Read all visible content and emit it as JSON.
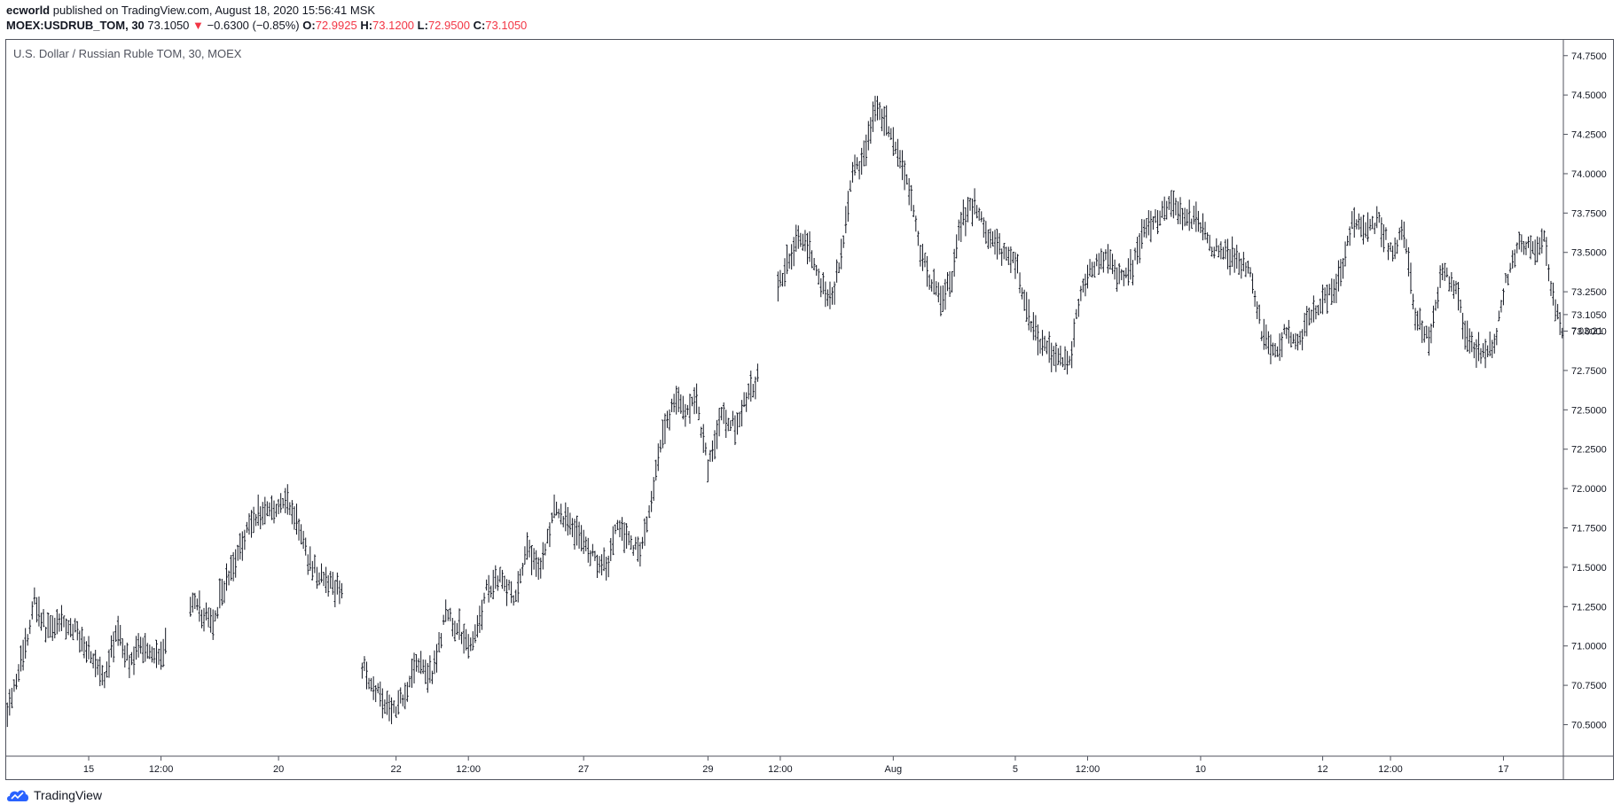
{
  "header": {
    "author": "ecworld",
    "published": "published on TradingView.com, August 18, 2020 15:56:41 MSK",
    "symbol": "MOEX:USDRUB_TOM, 30",
    "last": "73.1050",
    "change": "−0.6300 (−0.85%)",
    "o_label": "O:",
    "o_value": "72.9925",
    "h_label": "H:",
    "h_value": "73.1200",
    "l_label": "L:",
    "l_value": "72.9500",
    "c_label": "C:",
    "c_value": "73.1050"
  },
  "colors": {
    "bar": "#131722",
    "down": "#f23645",
    "axis": "#50535e",
    "brand": "#2962ff"
  },
  "footer": {
    "brand": "TradingView"
  },
  "chart_data": {
    "type": "ohlc",
    "title": "U.S. Dollar / Russian Ruble TOM, 30, MOEX",
    "y_ticks": [
      "74.7500",
      "74.5000",
      "74.2500",
      "74.0000",
      "73.7500",
      "73.5000",
      "73.2500",
      "73.0000",
      "72.7500",
      "72.5000",
      "72.2500",
      "72.0000",
      "71.7500",
      "71.5000",
      "71.2500",
      "71.0000",
      "70.7500",
      "70.5000"
    ],
    "ylim": [
      70.3,
      74.85
    ],
    "x_ticks": [
      "15",
      "12:00",
      "20",
      "22",
      "12:00",
      "27",
      "29",
      "12:00",
      "Aug",
      "5",
      "12:00",
      "10",
      "12",
      "12:00",
      "17"
    ],
    "last_price_label": "73.1050",
    "countdown_label": "03:21",
    "countdown_prefix": "7",
    "close_path": [
      {
        "x": 0,
        "y": 70.6
      },
      {
        "x": 5,
        "y": 70.85
      },
      {
        "x": 9,
        "y": 71.05
      },
      {
        "x": 12,
        "y": 71.3
      },
      {
        "x": 17,
        "y": 71.1
      },
      {
        "x": 22,
        "y": 71.15
      },
      {
        "x": 30,
        "y": 71.1
      },
      {
        "x": 37,
        "y": 70.95
      },
      {
        "x": 43,
        "y": 70.75
      },
      {
        "x": 48,
        "y": 71.1
      },
      {
        "x": 54,
        "y": 70.9
      },
      {
        "x": 60,
        "y": 71.0
      },
      {
        "x": 66,
        "y": 70.95
      },
      {
        "x": 70,
        "y": 71.0
      },
      {
        "x": 75,
        "y": null
      },
      {
        "x": 80,
        "y": 71.3
      },
      {
        "x": 86,
        "y": 71.2
      },
      {
        "x": 91,
        "y": 71.15
      },
      {
        "x": 95,
        "y": 71.35
      },
      {
        "x": 100,
        "y": 71.5
      },
      {
        "x": 106,
        "y": 71.75
      },
      {
        "x": 112,
        "y": 71.85
      },
      {
        "x": 118,
        "y": 71.88
      },
      {
        "x": 124,
        "y": 71.92
      },
      {
        "x": 128,
        "y": 71.8
      },
      {
        "x": 133,
        "y": 71.55
      },
      {
        "x": 138,
        "y": 71.45
      },
      {
        "x": 143,
        "y": 71.38
      },
      {
        "x": 148,
        "y": 71.35
      },
      {
        "x": 152,
        "y": null
      },
      {
        "x": 156,
        "y": 70.9
      },
      {
        "x": 162,
        "y": 70.75
      },
      {
        "x": 167,
        "y": 70.65
      },
      {
        "x": 171,
        "y": 70.6
      },
      {
        "x": 176,
        "y": 70.7
      },
      {
        "x": 181,
        "y": 70.9
      },
      {
        "x": 188,
        "y": 70.8
      },
      {
        "x": 194,
        "y": 71.2
      },
      {
        "x": 200,
        "y": 71.1
      },
      {
        "x": 206,
        "y": 71.0
      },
      {
        "x": 212,
        "y": 71.35
      },
      {
        "x": 218,
        "y": 71.45
      },
      {
        "x": 224,
        "y": 71.3
      },
      {
        "x": 230,
        "y": 71.6
      },
      {
        "x": 236,
        "y": 71.5
      },
      {
        "x": 242,
        "y": 71.85
      },
      {
        "x": 248,
        "y": 71.8
      },
      {
        "x": 254,
        "y": 71.68
      },
      {
        "x": 260,
        "y": 71.55
      },
      {
        "x": 266,
        "y": 71.52
      },
      {
        "x": 270,
        "y": 71.8
      },
      {
        "x": 276,
        "y": 71.65
      },
      {
        "x": 280,
        "y": 71.6
      },
      {
        "x": 285,
        "y": 71.9
      },
      {
        "x": 290,
        "y": 72.35
      },
      {
        "x": 295,
        "y": 72.55
      },
      {
        "x": 300,
        "y": 72.5
      },
      {
        "x": 305,
        "y": 72.55
      },
      {
        "x": 310,
        "y": 72.15
      },
      {
        "x": 316,
        "y": 72.45
      },
      {
        "x": 322,
        "y": 72.4
      },
      {
        "x": 328,
        "y": 72.6
      },
      {
        "x": 332,
        "y": 72.7
      },
      {
        "x": 336,
        "y": null
      },
      {
        "x": 340,
        "y": 73.2
      },
      {
        "x": 345,
        "y": 73.45
      },
      {
        "x": 350,
        "y": 73.6
      },
      {
        "x": 355,
        "y": 73.5
      },
      {
        "x": 360,
        "y": 73.3
      },
      {
        "x": 365,
        "y": 73.2
      },
      {
        "x": 370,
        "y": 73.6
      },
      {
        "x": 374,
        "y": 74.0
      },
      {
        "x": 379,
        "y": 74.1
      },
      {
        "x": 384,
        "y": 74.4
      },
      {
        "x": 389,
        "y": 74.3
      },
      {
        "x": 394,
        "y": 74.1
      },
      {
        "x": 399,
        "y": 73.9
      },
      {
        "x": 404,
        "y": 73.5
      },
      {
        "x": 409,
        "y": 73.3
      },
      {
        "x": 414,
        "y": 73.2
      },
      {
        "x": 418,
        "y": 73.35
      },
      {
        "x": 422,
        "y": 73.7
      },
      {
        "x": 428,
        "y": 73.8
      },
      {
        "x": 434,
        "y": 73.6
      },
      {
        "x": 440,
        "y": 73.5
      },
      {
        "x": 446,
        "y": 73.45
      },
      {
        "x": 452,
        "y": 73.1
      },
      {
        "x": 458,
        "y": 72.9
      },
      {
        "x": 464,
        "y": 72.85
      },
      {
        "x": 470,
        "y": 72.8
      },
      {
        "x": 475,
        "y": 73.25
      },
      {
        "x": 480,
        "y": 73.4
      },
      {
        "x": 486,
        "y": 73.45
      },
      {
        "x": 492,
        "y": 73.35
      },
      {
        "x": 498,
        "y": 73.4
      },
      {
        "x": 503,
        "y": 73.65
      },
      {
        "x": 508,
        "y": 73.7
      },
      {
        "x": 514,
        "y": 73.8
      },
      {
        "x": 520,
        "y": 73.75
      },
      {
        "x": 526,
        "y": 73.7
      },
      {
        "x": 532,
        "y": 73.55
      },
      {
        "x": 538,
        "y": 73.5
      },
      {
        "x": 544,
        "y": 73.45
      },
      {
        "x": 550,
        "y": 73.4
      },
      {
        "x": 555,
        "y": 73.0
      },
      {
        "x": 560,
        "y": 72.85
      },
      {
        "x": 566,
        "y": 73.0
      },
      {
        "x": 572,
        "y": 72.95
      },
      {
        "x": 578,
        "y": 73.15
      },
      {
        "x": 584,
        "y": 73.2
      },
      {
        "x": 590,
        "y": 73.35
      },
      {
        "x": 595,
        "y": 73.7
      },
      {
        "x": 601,
        "y": 73.65
      },
      {
        "x": 607,
        "y": 73.7
      },
      {
        "x": 612,
        "y": 73.5
      },
      {
        "x": 618,
        "y": 73.65
      },
      {
        "x": 623,
        "y": 73.1
      },
      {
        "x": 629,
        "y": 72.95
      },
      {
        "x": 635,
        "y": 73.4
      },
      {
        "x": 641,
        "y": 73.25
      },
      {
        "x": 646,
        "y": 72.95
      },
      {
        "x": 652,
        "y": 72.85
      },
      {
        "x": 658,
        "y": 72.9
      },
      {
        "x": 663,
        "y": 73.3
      },
      {
        "x": 669,
        "y": 73.6
      },
      {
        "x": 675,
        "y": 73.5
      },
      {
        "x": 680,
        "y": 73.6
      },
      {
        "x": 684,
        "y": 73.2
      },
      {
        "x": 688,
        "y": 73.0
      }
    ],
    "x_tick_positions": [
      36,
      68,
      120,
      172,
      204,
      255,
      310,
      342,
      392,
      446,
      478,
      528,
      582,
      612,
      662
    ],
    "n_bars": 689
  }
}
